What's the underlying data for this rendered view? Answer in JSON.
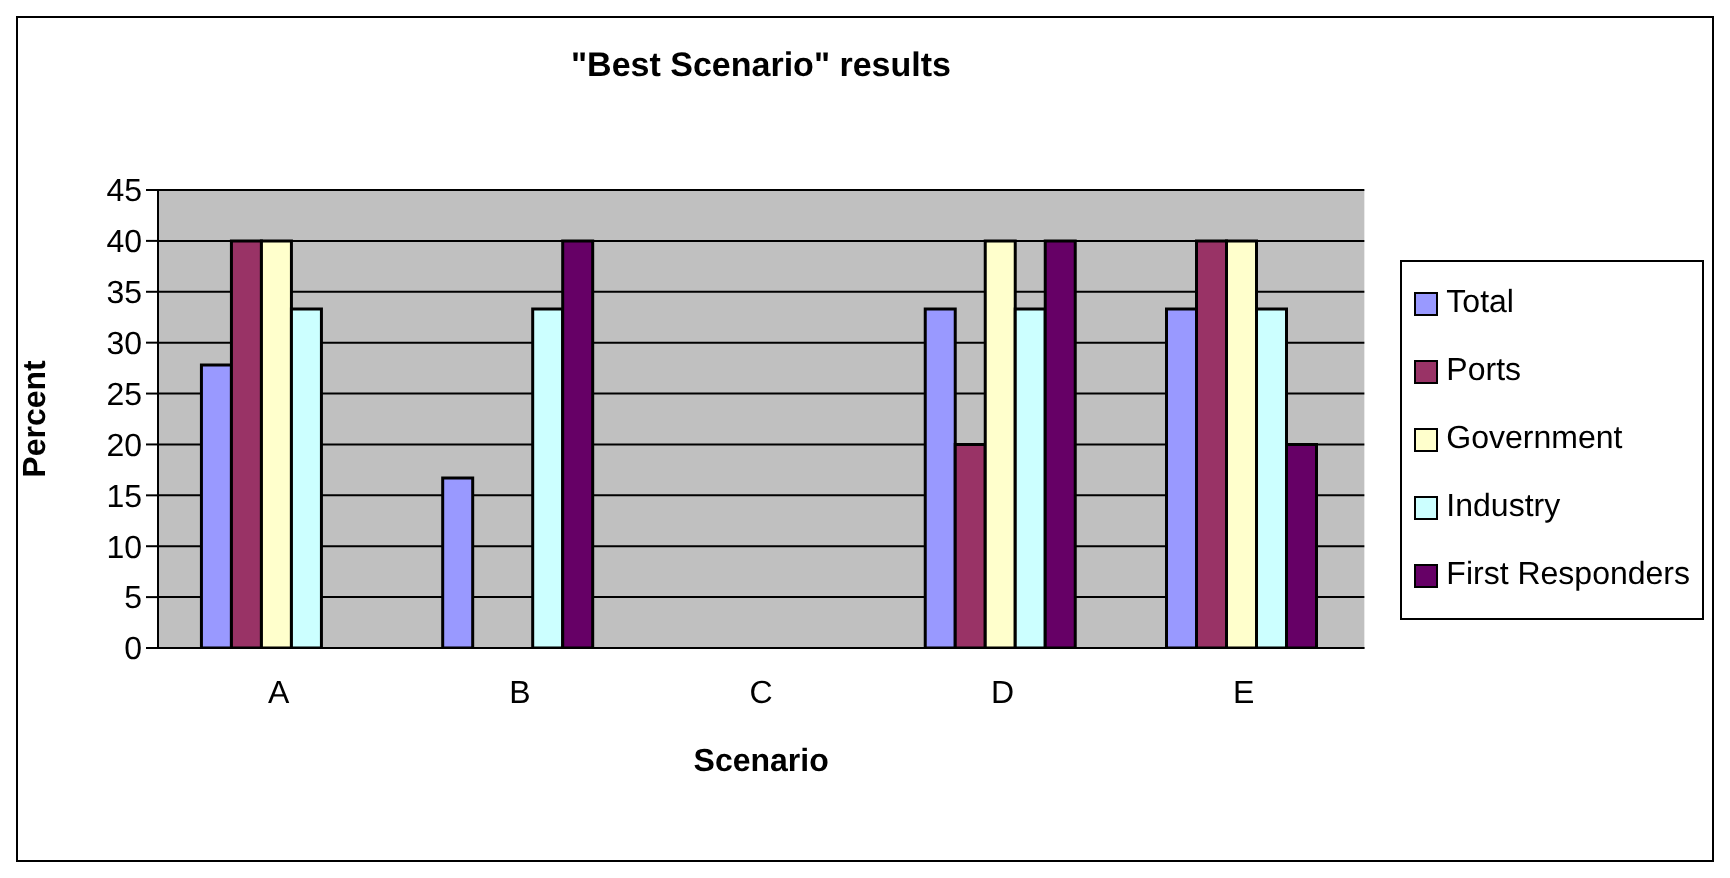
{
  "chart_data": {
    "type": "bar",
    "title": "\"Best Scenario\" results",
    "xlabel": "Scenario",
    "ylabel": "Percent",
    "categories": [
      "A",
      "B",
      "C",
      "D",
      "E"
    ],
    "series": [
      {
        "name": "Total",
        "color": "#9999ff",
        "values": [
          27.8,
          16.7,
          0,
          33.3,
          33.3
        ]
      },
      {
        "name": "Ports",
        "color": "#993366",
        "values": [
          40,
          0,
          0,
          20,
          40
        ]
      },
      {
        "name": "Government",
        "color": "#ffffcc",
        "values": [
          40,
          0,
          0,
          40,
          40
        ]
      },
      {
        "name": "Industry",
        "color": "#ccffff",
        "values": [
          33.3,
          33.3,
          0,
          33.3,
          33.3
        ]
      },
      {
        "name": "First Responders",
        "color": "#660066",
        "values": [
          0,
          40,
          0,
          40,
          20
        ]
      }
    ],
    "ylim": [
      0,
      45
    ],
    "yticks": [
      0,
      5,
      10,
      15,
      20,
      25,
      30,
      35,
      40,
      45
    ],
    "grid": "y",
    "legend": "right"
  }
}
